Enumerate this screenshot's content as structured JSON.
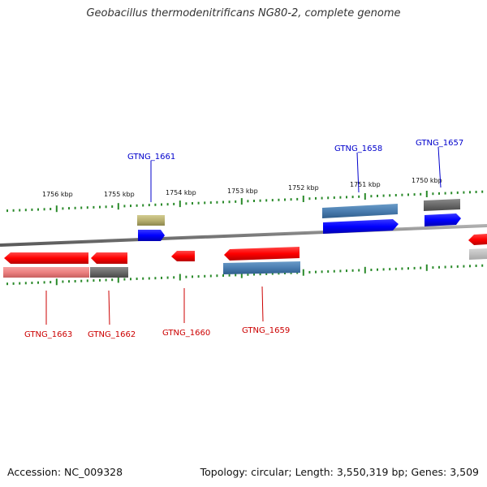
{
  "title": "Geobacillus thermodenitrificans NG80-2, complete genome",
  "footer": {
    "accession": "Accession: NC_009328",
    "topology": "Topology: circular; Length: 3,550,319 bp; Genes: 3,509"
  },
  "colors": {
    "forward_gene": "#ff0000",
    "reverse_gene": "#0000ff",
    "forward_label": "#cc0000",
    "reverse_label": "#0000cc",
    "backbone": "#8a8a8a",
    "tick": "#2a8a2a"
  },
  "ruler": [
    {
      "label": "1756 kbp",
      "value": 1756
    },
    {
      "label": "1755 kbp",
      "value": 1755
    },
    {
      "label": "1754 kbp",
      "value": 1754
    },
    {
      "label": "1753 kbp",
      "value": 1753
    },
    {
      "label": "1752 kbp",
      "value": 1752
    },
    {
      "label": "1751 kbp",
      "value": 1751
    },
    {
      "label": "1750 kbp",
      "value": 1750
    }
  ],
  "genes_top": [
    {
      "name": "GTNG_1661"
    },
    {
      "name": "GTNG_1658"
    },
    {
      "name": "GTNG_1657"
    }
  ],
  "genes_bottom": [
    {
      "name": "GTNG_1663"
    },
    {
      "name": "GTNG_1662"
    },
    {
      "name": "GTNG_1660"
    },
    {
      "name": "GTNG_1659"
    }
  ]
}
